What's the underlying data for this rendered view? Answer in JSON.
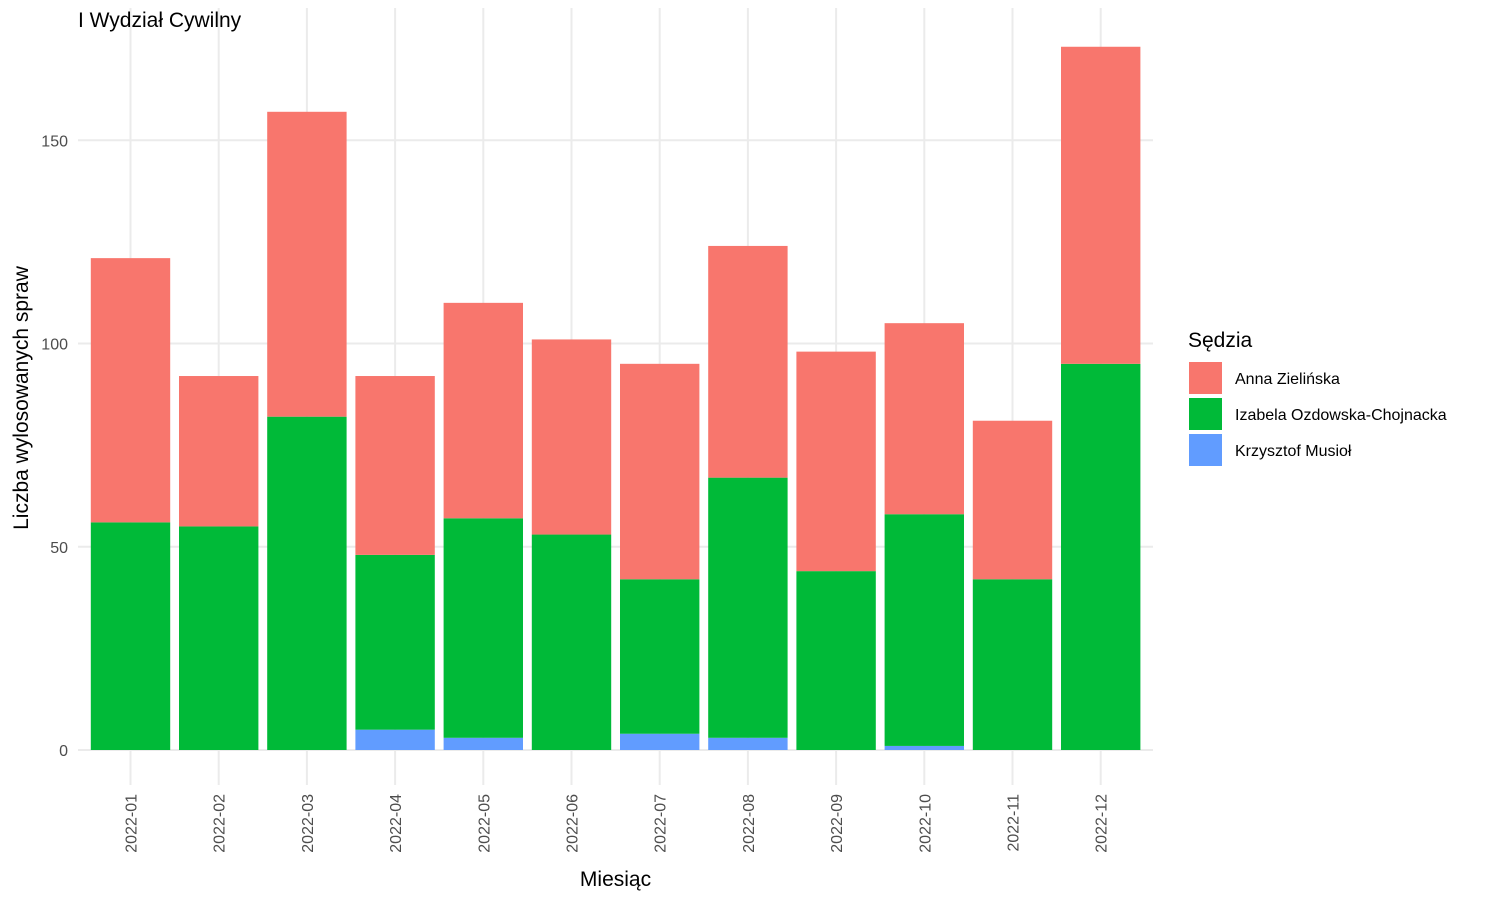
{
  "chart_data": {
    "type": "bar",
    "stacked": true,
    "title": "I Wydział Cywilny",
    "xlabel": "Miesiąc",
    "ylabel": "Liczba wylosowanych spraw",
    "ylim": [
      0,
      173
    ],
    "yticks": [
      0,
      50,
      100,
      150
    ],
    "grid": true,
    "legend_title": "Sędzia",
    "legend_position": "right",
    "categories": [
      "2022-01",
      "2022-02",
      "2022-03",
      "2022-04",
      "2022-05",
      "2022-06",
      "2022-07",
      "2022-08",
      "2022-09",
      "2022-10",
      "2022-11",
      "2022-12"
    ],
    "series": [
      {
        "name": "Krzysztof Musioł",
        "color": "#619CFF",
        "values": [
          0,
          0,
          0,
          5,
          3,
          0,
          4,
          3,
          0,
          1,
          0,
          0
        ]
      },
      {
        "name": "Izabela Ozdowska-Chojnacka",
        "color": "#00BA38",
        "values": [
          56,
          55,
          82,
          43,
          54,
          53,
          38,
          64,
          44,
          57,
          42,
          95
        ]
      },
      {
        "name": "Anna Zielińska",
        "color": "#F8766D",
        "values": [
          65,
          37,
          75,
          44,
          53,
          48,
          53,
          57,
          54,
          47,
          39,
          78
        ]
      }
    ],
    "legend_order": [
      "Anna Zielińska",
      "Izabela Ozdowska-Chojnacka",
      "Krzysztof Musioł"
    ]
  }
}
